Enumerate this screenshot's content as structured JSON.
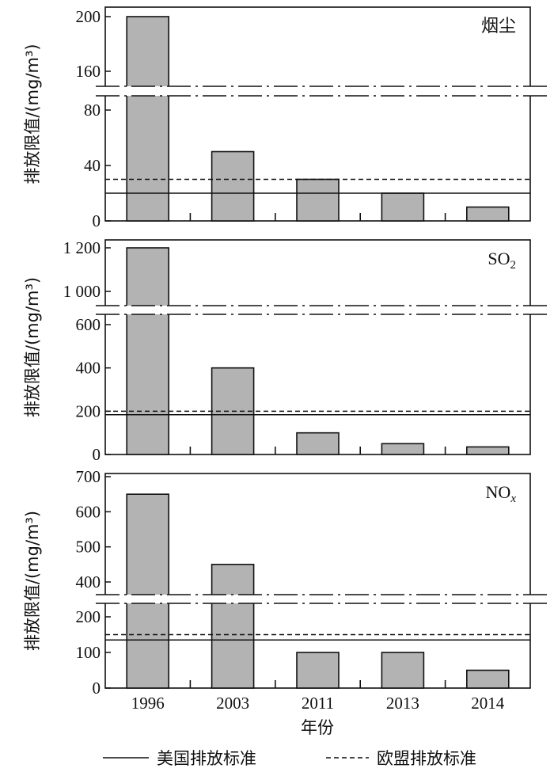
{
  "chart_data": [
    {
      "type": "bar",
      "title": "烟尘",
      "ylabel": "排放限值/(mg/m³)",
      "categories": [
        "1996",
        "2003",
        "2011",
        "2013",
        "2014"
      ],
      "values": [
        200,
        50,
        30,
        20,
        10
      ],
      "us_standard": 20,
      "eu_standard": 30,
      "axis_break": [
        90,
        150
      ],
      "yticks": [
        0,
        40,
        80,
        160,
        200
      ],
      "ytick_labels": [
        "0",
        "40",
        "80",
        "160",
        "200"
      ]
    },
    {
      "type": "bar",
      "title": "SO",
      "title_sub": "2",
      "ylabel": "排放限值/(mg/m³)",
      "categories": [
        "1996",
        "2003",
        "2011",
        "2013",
        "2014"
      ],
      "values": [
        1200,
        400,
        100,
        50,
        35
      ],
      "us_standard": 184,
      "eu_standard": 200,
      "axis_break": [
        650,
        930
      ],
      "yticks": [
        0,
        200,
        400,
        600,
        1000,
        1200
      ],
      "ytick_labels": [
        "0",
        "200",
        "400",
        "600",
        "1 000",
        "1 200"
      ]
    },
    {
      "type": "bar",
      "title": "NO",
      "title_sub": "x",
      "ylabel": "排放限值/(mg/m³)",
      "categories": [
        "1996",
        "2003",
        "2011",
        "2013",
        "2014"
      ],
      "values": [
        650,
        450,
        100,
        100,
        50
      ],
      "us_standard": 135,
      "eu_standard": 150,
      "axis_break": [
        245,
        365
      ],
      "yticks": [
        0,
        100,
        200,
        400,
        500,
        600,
        700
      ],
      "ytick_labels": [
        "0",
        "100",
        "200",
        "400",
        "500",
        "600",
        "700"
      ]
    }
  ],
  "xlabel": "年份",
  "legend": {
    "us": "美国排放标准",
    "eu": "欧盟排放标准"
  },
  "colors": {
    "bar": "#b3b3b3",
    "line": "#111111"
  }
}
